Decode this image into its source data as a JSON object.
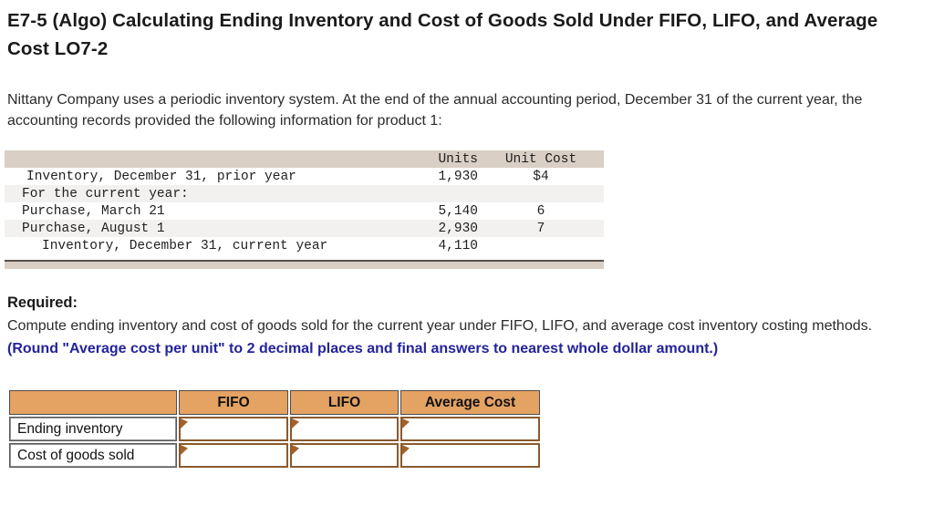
{
  "page": {
    "title": "E7-5 (Algo) Calculating Ending Inventory and Cost of Goods Sold Under FIFO, LIFO, and Average Cost LO7-2"
  },
  "intro": "Nittany Company uses a periodic inventory system. At the end of the annual accounting period, December 31 of the current year, the accounting records provided the following information for product 1:",
  "inventory_table": {
    "headers": {
      "units": "Units",
      "unit_cost": "Unit Cost"
    },
    "rows": [
      {
        "label": "Inventory, December 31, prior year",
        "units": "1,930",
        "unit_cost": "$4"
      },
      {
        "label": "For the current year:",
        "units": "",
        "unit_cost": ""
      },
      {
        "label": "Purchase, March 21",
        "units": "5,140",
        "unit_cost": "6"
      },
      {
        "label": "Purchase, August 1",
        "units": "2,930",
        "unit_cost": "7"
      },
      {
        "label": "Inventory, December 31, current year",
        "units": "4,110",
        "unit_cost": ""
      }
    ]
  },
  "required": {
    "heading": "Required:",
    "text_normal": "Compute ending inventory and cost of goods sold for the current year under FIFO, LIFO, and average cost inventory costing methods. ",
    "text_emphasis": "(Round \"Average cost per unit\" to 2 decimal places and final answers to nearest whole dollar amount.)"
  },
  "answer_table": {
    "columns": [
      "FIFO",
      "LIFO",
      "Average Cost"
    ],
    "rows": [
      {
        "label": "Ending inventory",
        "values": [
          "",
          "",
          ""
        ]
      },
      {
        "label": "Cost of goods sold",
        "values": [
          "",
          "",
          ""
        ]
      }
    ]
  },
  "colors": {
    "header_beige": "#d9cfc4",
    "row_stripe_gray": "#f2f1ef",
    "footer_bar_border": "#55504a",
    "emphasis_blue": "#23239c",
    "answer_header_orange": "#e4a263",
    "input_border_brown": "#8a5a2e",
    "marker_brown": "#a2622a"
  }
}
